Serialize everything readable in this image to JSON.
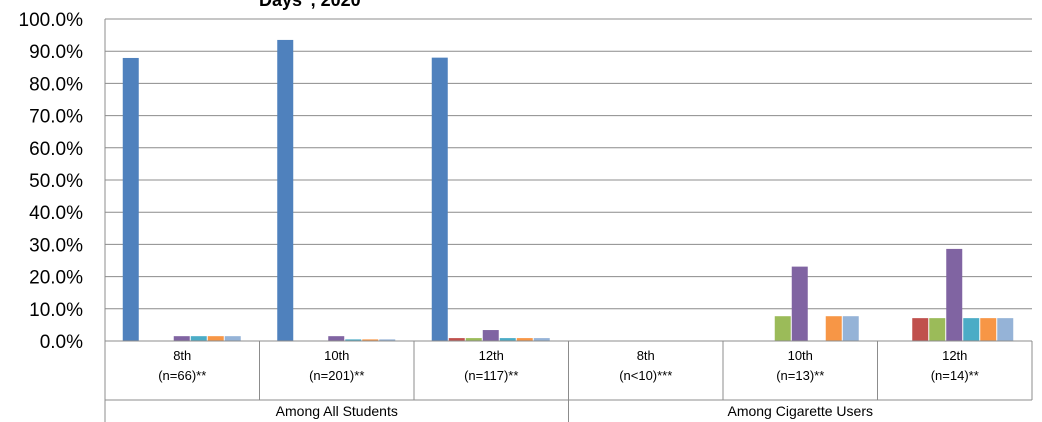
{
  "chart_data": {
    "type": "bar",
    "title": "Days\", 2020",
    "ylim": [
      0,
      100
    ],
    "yticks": [
      "0.0%",
      "10.0%",
      "20.0%",
      "30.0%",
      "40.0%",
      "50.0%",
      "60.0%",
      "70.0%",
      "80.0%",
      "90.0%",
      "100.0%"
    ],
    "grid": true,
    "categories": [
      {
        "grade": "8th",
        "n": "(n=66)**"
      },
      {
        "grade": "10th",
        "n": "(n=201)**"
      },
      {
        "grade": "12th",
        "n": "(n=117)**"
      },
      {
        "grade": "8th",
        "n": "(n<10)***"
      },
      {
        "grade": "10th",
        "n": "(n=13)**"
      },
      {
        "grade": "12th",
        "n": "(n=14)**"
      }
    ],
    "groups": [
      {
        "label": "Among All Students",
        "span": 3
      },
      {
        "label": "Among Cigarette Users",
        "span": 3
      }
    ],
    "series": [
      {
        "color": "#4f81bd",
        "values": [
          87.9,
          93.5,
          88.0,
          0,
          0,
          0
        ]
      },
      {
        "color": "#c0504d",
        "values": [
          0,
          0,
          0.9,
          0,
          0,
          7.1
        ]
      },
      {
        "color": "#9bbb59",
        "values": [
          0,
          0,
          0.9,
          0,
          7.7,
          7.1
        ]
      },
      {
        "color": "#8064a2",
        "values": [
          1.5,
          1.5,
          3.4,
          0,
          23.1,
          28.6
        ]
      },
      {
        "color": "#4bacc6",
        "values": [
          1.5,
          0.5,
          0.9,
          0,
          0,
          7.1
        ]
      },
      {
        "color": "#f79646",
        "values": [
          1.5,
          0.5,
          0.9,
          0,
          7.7,
          7.1
        ]
      },
      {
        "color": "#95b3d7",
        "values": [
          1.5,
          0.5,
          0.9,
          0,
          7.7,
          7.1
        ]
      }
    ]
  }
}
